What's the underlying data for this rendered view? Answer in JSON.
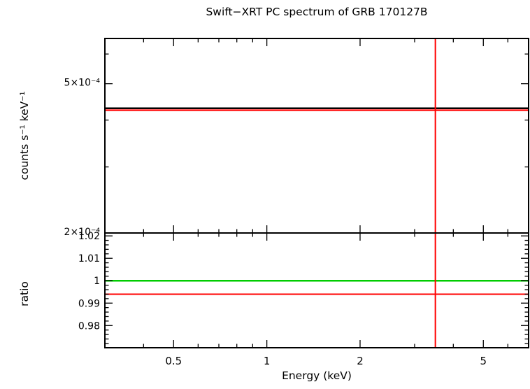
{
  "figure": {
    "background_color": "#ffffff",
    "text_color": "#000000"
  },
  "chart_data": {
    "type": "line",
    "title": "Swift−XRT PC spectrum of GRB 170127B",
    "xlabel": "Energy (keV)",
    "x_scale": "log",
    "xlim": [
      0.3,
      7.0
    ],
    "x_major_ticks": [
      0.5,
      1,
      2,
      5
    ],
    "x_major_tick_labels": [
      "0.5",
      "1",
      "2",
      "5"
    ],
    "x_minor_ticks": [
      0.4,
      0.6,
      0.7,
      0.8,
      0.9,
      3,
      4,
      6
    ],
    "grid": false,
    "legend": false,
    "panels": [
      {
        "name": "spectrum",
        "ylabel": "counts s⁻¹ keV⁻¹",
        "y_scale": "log",
        "ylim": [
          0.0002,
          0.00066
        ],
        "y_major_ticks": [
          0.0005,
          0.0002
        ],
        "y_major_tick_labels": [
          "5×10⁻⁴",
          "2×10⁻⁴"
        ],
        "y_minor_ticks": [
          0.0003,
          0.0004,
          0.0006
        ],
        "series": [
          {
            "name": "data-counts",
            "color": "#000000",
            "value": 0.00043,
            "x_start": 0.3,
            "x_end": 7.0,
            "width": 2.5
          },
          {
            "name": "model-counts",
            "color": "#ff0000",
            "value": 0.000425,
            "x_start": 0.3,
            "x_end": 7.0,
            "width": 2.2
          }
        ],
        "vline": {
          "x": 3.5,
          "color": "#ff0000"
        }
      },
      {
        "name": "ratio",
        "ylabel": "ratio",
        "y_scale": "linear",
        "ylim": [
          0.9701,
          1.0213
        ],
        "y_major_ticks": [
          1.02,
          1.01,
          1,
          0.99,
          0.98
        ],
        "y_major_tick_labels": [
          "1.02",
          "1.01",
          "1",
          "0.99",
          "0.98"
        ],
        "y_minor_step": 0.002,
        "series": [
          {
            "name": "unity-line",
            "color": "#00cc00",
            "value": 1.0,
            "x_start": 0.3,
            "x_end": 7.0,
            "width": 2.5
          },
          {
            "name": "ratio-line",
            "color": "#ff0000",
            "value": 0.994,
            "x_start": 0.3,
            "x_end": 7.0,
            "width": 2
          }
        ],
        "vline": {
          "x": 3.5,
          "color": "#ff0000"
        }
      }
    ]
  }
}
